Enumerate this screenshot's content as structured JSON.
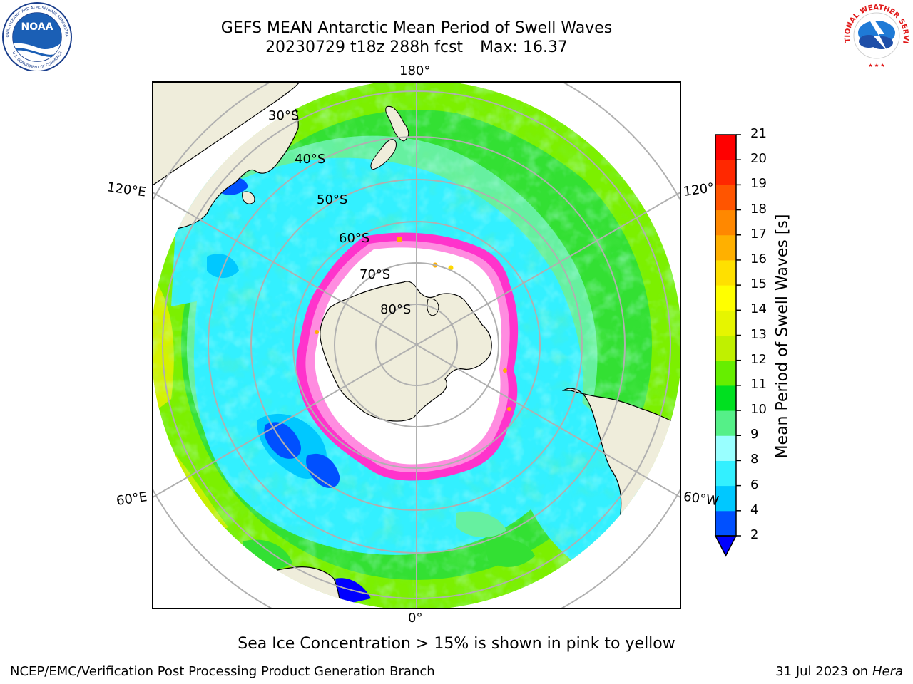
{
  "header": {
    "title_line1": "GEFS MEAN Antarctic Mean Period of Swell Waves",
    "date_run": "20230729 t18z 288h fcst",
    "max_text": "Max: 16.37"
  },
  "map": {
    "longitude_labels": {
      "top": "180°",
      "bottom": "0°",
      "left_upper": "120°E",
      "left_lower": "60°E",
      "right_upper": "120°",
      "right_lower": "60°W"
    },
    "latitude_labels": [
      "30°S",
      "40°S",
      "50°S",
      "60°S",
      "70°S",
      "80°S"
    ],
    "colors": {
      "land": "#EFEDDB",
      "ice_edge": "#FF33CC",
      "ice_warm": "#FFB000"
    }
  },
  "colorbar": {
    "label": "Mean Period of Swell Waves [s]",
    "ticks": [
      "2",
      "4",
      "6",
      "8",
      "9",
      "10",
      "11",
      "12",
      "13",
      "14",
      "15",
      "16",
      "17",
      "18",
      "19",
      "20",
      "21"
    ],
    "colors": [
      "#0050FF",
      "#00C8FF",
      "#33F0FF",
      "#99FFFF",
      "#55F088",
      "#00E020",
      "#66EE00",
      "#C0F000",
      "#E6F500",
      "#FFFF00",
      "#FFE000",
      "#FFB000",
      "#FF8800",
      "#FF5500",
      "#FF2800",
      "#FF0000"
    ],
    "extend_color": "#0000FF"
  },
  "footer": {
    "note": "Sea Ice Concentration > 15% is shown in pink to yellow",
    "left": "NCEP/EMC/Verification Post Processing Product Generation Branch",
    "date": "31 Jul 2023",
    "on_word": "on",
    "machine": "Hera"
  },
  "logos": {
    "noaa_text": "NOAA",
    "noaa_ring_top": "NATIONAL OCEANIC AND ATMOSPHERIC ADMINISTRATION",
    "noaa_ring_bottom": "U.S. DEPARTMENT OF COMMERCE",
    "nws_ring": "NATIONAL WEATHER SERVICE"
  }
}
